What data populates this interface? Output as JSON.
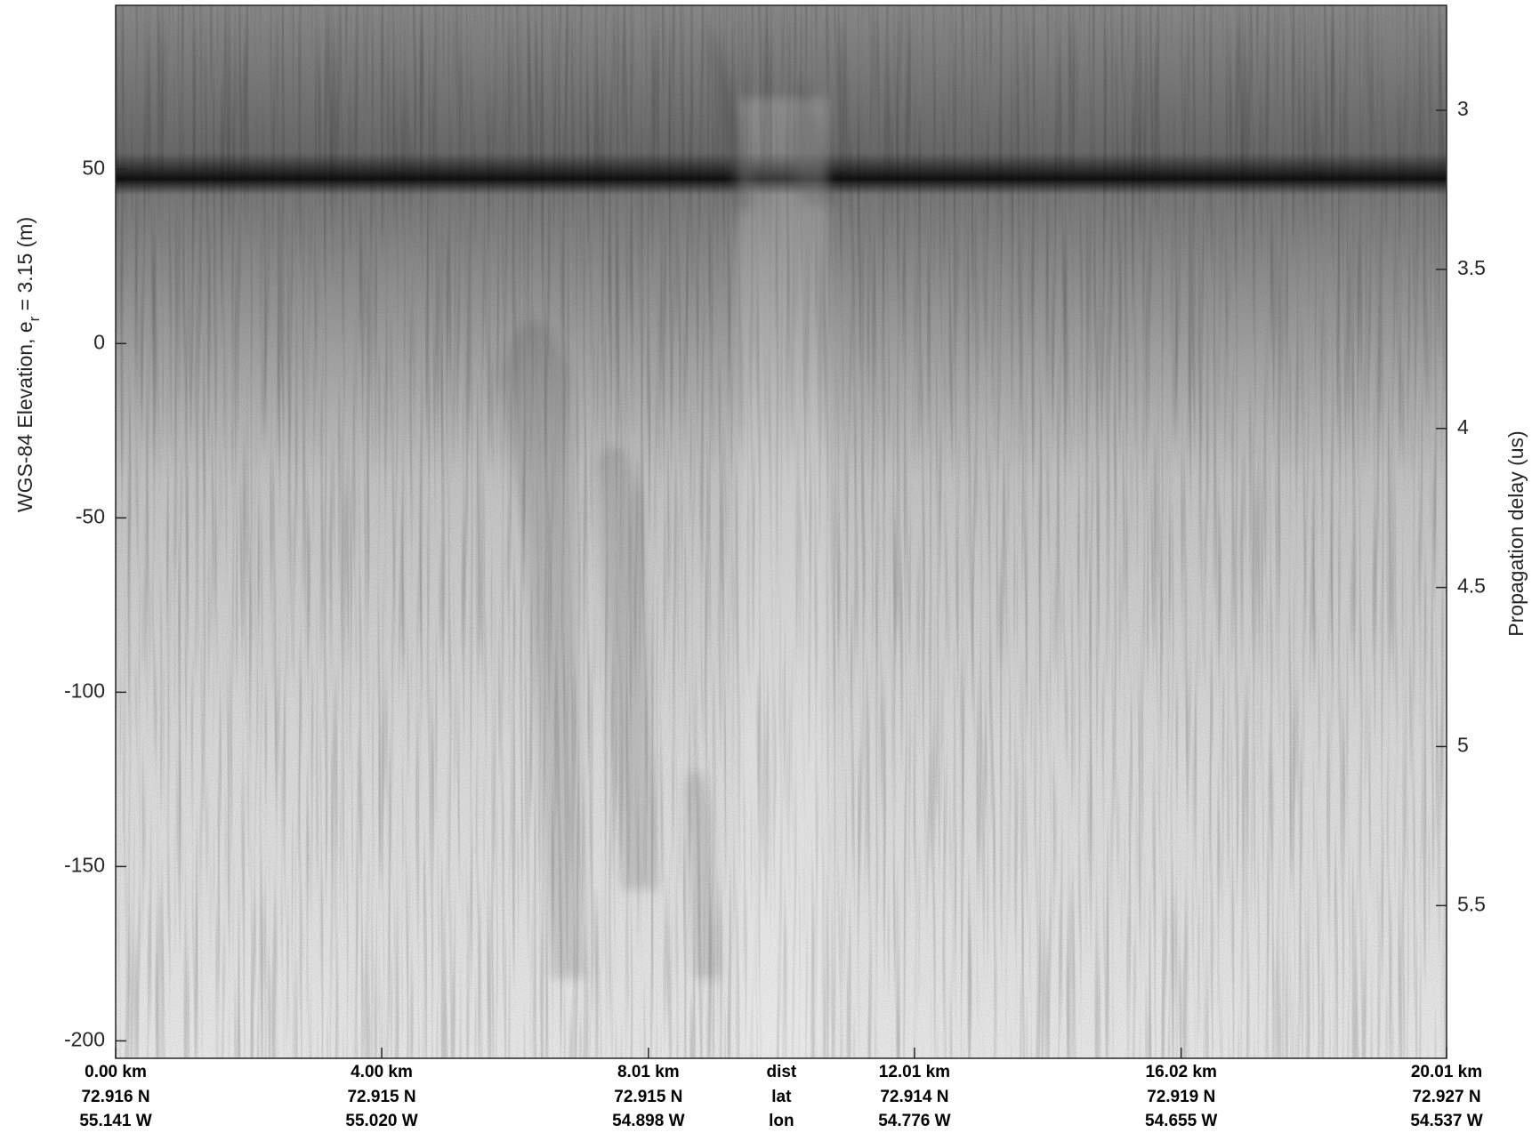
{
  "chart_data": {
    "type": "echogram",
    "ylabel": "WGS-84 Elevation, e",
    "ylabel_sub": "r",
    "ylabel_rest": " = 3.15 (m)",
    "y2label": "Propagation delay (us)",
    "xlim": [
      0,
      20.01
    ],
    "xticks": [
      {
        "value": 0,
        "label": "0.00 km"
      },
      {
        "value": 4.0,
        "label": "4.00 km"
      },
      {
        "value": 8.01,
        "label": "8.01 km"
      },
      {
        "value": 12.01,
        "label": "12.01 km"
      },
      {
        "value": 16.02,
        "label": "16.02 km"
      },
      {
        "value": 20.01,
        "label": "20.01 km"
      }
    ],
    "xtick_lat": [
      "72.916 N",
      "72.915 N",
      "72.915 N",
      "72.914 N",
      "72.919 N",
      "72.927 N"
    ],
    "xtick_lon": [
      "55.141 W",
      "55.020 W",
      "54.898 W",
      "54.776 W",
      "54.655 W",
      "54.537 W"
    ],
    "x_row_labels": [
      "dist",
      "lat",
      "lon"
    ],
    "ylim": [
      -205,
      97
    ],
    "yticks": [
      -200,
      -150,
      -100,
      -50,
      0,
      50
    ],
    "y2lim": [
      5.98,
      2.67
    ],
    "y2ticks": [
      3,
      3.5,
      4,
      4.5,
      5,
      5.5
    ],
    "colormap": "gray"
  }
}
